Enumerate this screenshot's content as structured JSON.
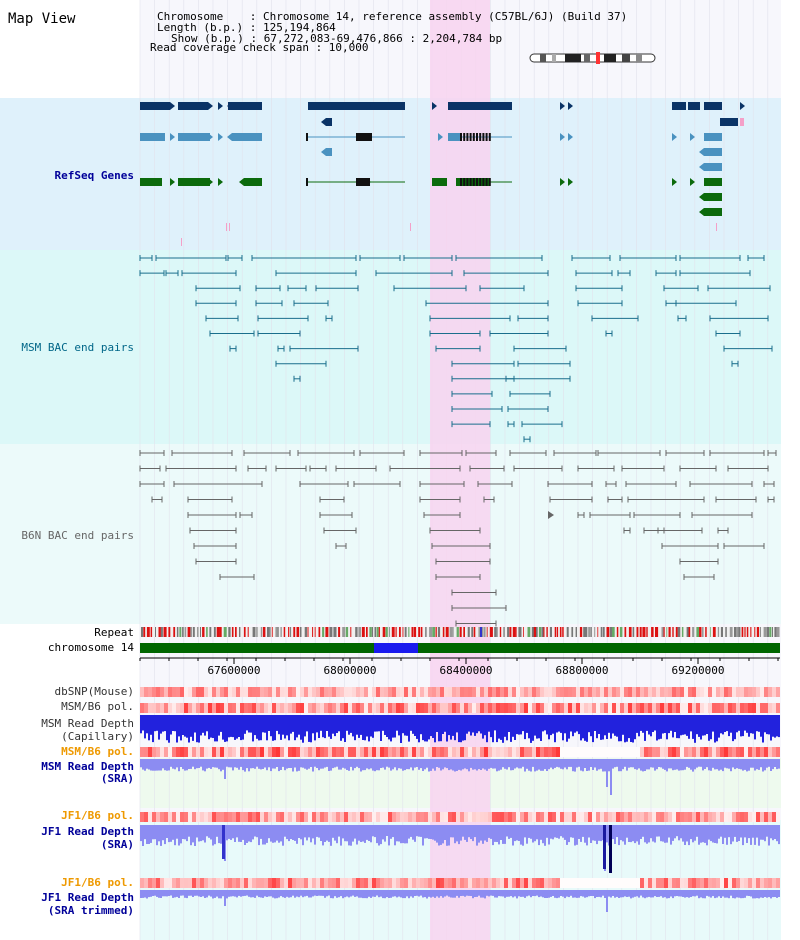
{
  "header": {
    "title": "Map View",
    "rows": [
      "Chromosome    : Chromosome 14, reference assembly (C57BL/6J) (Build 37)",
      "Length (b.p.) : 125,194,864",
      "Show (b.p.) : 67,272,083-69,476,866 : 2,204,784 bp",
      "Read coverage check span : 10,000"
    ]
  },
  "tracks": {
    "refseq": "RefSeq Genes",
    "msm_bac": "MSM BAC end pairs",
    "b6n_bac": "B6N BAC end pairs",
    "repeat": "Repeat",
    "chromosome": "chromosome 14",
    "dbsnp": "dbSNP(Mouse)",
    "msm_b6_pol": "MSM/B6 pol.",
    "msm_read_depth_cap_1": "MSM Read Depth",
    "msm_read_depth_cap_2": "(Capillary)",
    "msm_b6_pol_sra": "MSM/B6 pol.",
    "msm_read_depth_sra_1": "MSM Read Depth",
    "msm_read_depth_sra_2": "(SRA)",
    "jf1_b6_pol": "JF1/B6 pol.",
    "jf1_read_depth_1": "JF1 Read Depth",
    "jf1_read_depth_2": "(SRA)",
    "jf1_b6_pol_trim": "JF1/B6 pol.",
    "jf1_read_depth_trim_1": "JF1 Read Depth",
    "jf1_read_depth_trim_2": "(SRA trimmed)"
  },
  "axis": {
    "ticks": [
      "67600000",
      "68000000",
      "68400000",
      "68800000",
      "69200000"
    ]
  },
  "colors": {
    "refseq_bg": "#dff1fb",
    "msm_bac_bg": "#dcf8f8",
    "b6n_bac_bg": "#ecfafa",
    "highlight": "#f8d4f0",
    "refseq_dark": "#0a3366",
    "refseq_mid": "#4a92c0",
    "refseq_green": "#0c6a0c",
    "msm_bac": "#1a6e8c",
    "b6n_bac": "#666666",
    "chromosome": "#006600",
    "chromosome_sel": "#1a1aee",
    "depth_capillary": "#2222dd",
    "depth_sra": "#8c8cf2",
    "polymorph": "#ee4444",
    "label_navy": "#000099",
    "label_teal": "#006688",
    "label_orange": "#ee9900"
  }
}
